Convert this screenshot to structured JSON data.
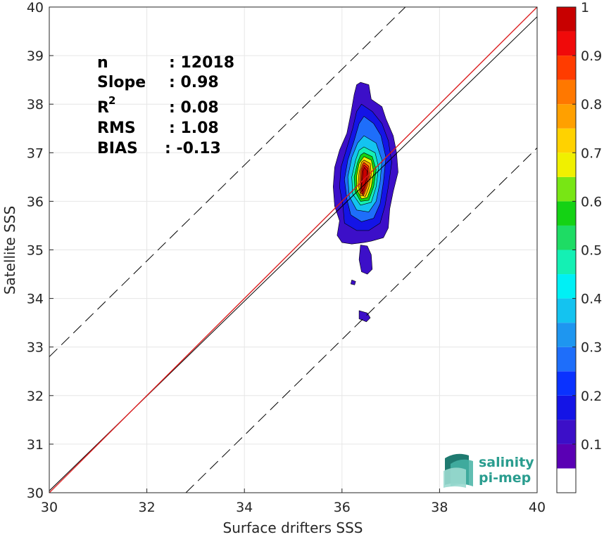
{
  "chart_data": {
    "type": "heatmap",
    "title": "",
    "xlabel": "Surface drifters SSS",
    "ylabel": "Satellite SSS",
    "xlim": [
      30,
      40
    ],
    "ylim": [
      30,
      40
    ],
    "xticks": [
      "30",
      "32",
      "34",
      "36",
      "38",
      "40"
    ],
    "yticks": [
      "30",
      "31",
      "32",
      "33",
      "34",
      "35",
      "36",
      "37",
      "38",
      "39",
      "40"
    ],
    "grid": true,
    "stats": [
      {
        "label": "n",
        "value": ": 12018"
      },
      {
        "label": "Slope",
        "value": ": 0.98"
      },
      {
        "label": "R",
        "sup": "2",
        "value": ": 0.08"
      },
      {
        "label": "RMS",
        "value": ": 1.08"
      },
      {
        "label": "BIAS",
        "value": ": -0.13"
      }
    ],
    "lines": [
      {
        "kind": "one-to-one",
        "color": "#000000",
        "style": "solid",
        "points": [
          [
            30,
            30
          ],
          [
            40,
            40
          ]
        ]
      },
      {
        "kind": "upper-offset",
        "color": "#000000",
        "style": "dashed",
        "points": [
          [
            30,
            32.8
          ],
          [
            37.3,
            40
          ]
        ]
      },
      {
        "kind": "lower-offset",
        "color": "#000000",
        "style": "dashed",
        "points": [
          [
            32.8,
            30
          ],
          [
            40,
            37.1
          ]
        ]
      },
      {
        "kind": "regression",
        "color": "#000000",
        "style": "solid",
        "points": [
          [
            30,
            30.04
          ],
          [
            40,
            39.8
          ]
        ]
      },
      {
        "kind": "fit",
        "color": "#e41a1c",
        "style": "solid",
        "points": [
          [
            30,
            30
          ],
          [
            40,
            40
          ]
        ]
      }
    ],
    "colorbar": {
      "levels": [
        "0",
        "0.05",
        "0.1",
        "0.15",
        "0.2",
        "0.25",
        "0.3",
        "0.35",
        "0.4",
        "0.45",
        "0.5",
        "0.55",
        "0.6",
        "0.65",
        "0.7",
        "0.75",
        "0.8",
        "0.85",
        "0.9",
        "0.95",
        "1"
      ],
      "colors": [
        "#ffffff",
        "#5a00b4",
        "#3c0fc8",
        "#1414e6",
        "#0a32ff",
        "#1e6efa",
        "#1e96f0",
        "#14c3f0",
        "#00f0f5",
        "#14f0b4",
        "#1edc64",
        "#14d214",
        "#78e614",
        "#f0f000",
        "#ffd200",
        "#ffa000",
        "#ff7800",
        "#ff3c00",
        "#f00a0a",
        "#c80000",
        "#7d0000"
      ],
      "ticks": [
        "0.1",
        "0.2",
        "0.3",
        "0.4",
        "0.5",
        "0.6",
        "0.7",
        "0.8",
        "0.9",
        "1"
      ]
    },
    "density_contours": [
      {
        "level": "0.05",
        "points": [
          [
            36.38,
            38.45
          ],
          [
            36.55,
            38.4
          ],
          [
            36.6,
            38.1
          ],
          [
            36.82,
            37.95
          ],
          [
            36.9,
            37.7
          ],
          [
            37.05,
            37.35
          ],
          [
            37.12,
            37.0
          ],
          [
            37.15,
            36.6
          ],
          [
            37.05,
            36.2
          ],
          [
            36.98,
            35.85
          ],
          [
            36.95,
            35.45
          ],
          [
            36.85,
            35.25
          ],
          [
            36.6,
            35.18
          ],
          [
            36.45,
            35.15
          ],
          [
            36.2,
            35.12
          ],
          [
            36.0,
            35.15
          ],
          [
            35.9,
            35.3
          ],
          [
            35.95,
            35.6
          ],
          [
            35.85,
            35.9
          ],
          [
            35.82,
            36.3
          ],
          [
            35.85,
            36.7
          ],
          [
            35.95,
            37.05
          ],
          [
            36.1,
            37.4
          ],
          [
            36.18,
            37.8
          ],
          [
            36.25,
            38.2
          ],
          [
            36.3,
            38.4
          ]
        ]
      },
      {
        "level": "0.05",
        "points": [
          [
            36.38,
            35.1
          ],
          [
            36.52,
            35.08
          ],
          [
            36.6,
            34.9
          ],
          [
            36.62,
            34.6
          ],
          [
            36.52,
            34.5
          ],
          [
            36.4,
            34.55
          ],
          [
            36.35,
            34.8
          ]
        ]
      },
      {
        "level": "0.05",
        "points": [
          [
            36.2,
            34.38
          ],
          [
            36.28,
            34.35
          ],
          [
            36.26,
            34.28
          ],
          [
            36.18,
            34.3
          ]
        ]
      },
      {
        "level": "0.05",
        "points": [
          [
            36.35,
            33.75
          ],
          [
            36.52,
            33.7
          ],
          [
            36.58,
            33.6
          ],
          [
            36.5,
            33.52
          ],
          [
            36.35,
            33.58
          ]
        ]
      },
      {
        "level": "0.1",
        "points": [
          [
            36.4,
            38.0
          ],
          [
            36.62,
            37.85
          ],
          [
            36.82,
            37.6
          ],
          [
            36.95,
            37.25
          ],
          [
            37.02,
            36.8
          ],
          [
            36.95,
            36.3
          ],
          [
            36.88,
            35.9
          ],
          [
            36.78,
            35.55
          ],
          [
            36.55,
            35.4
          ],
          [
            36.3,
            35.4
          ],
          [
            36.05,
            35.55
          ],
          [
            36.02,
            35.9
          ],
          [
            35.95,
            36.3
          ],
          [
            35.98,
            36.7
          ],
          [
            36.1,
            37.1
          ],
          [
            36.22,
            37.5
          ],
          [
            36.3,
            37.85
          ]
        ]
      },
      {
        "level": "0.2",
        "points": [
          [
            36.45,
            37.75
          ],
          [
            36.65,
            37.6
          ],
          [
            36.8,
            37.35
          ],
          [
            36.9,
            36.9
          ],
          [
            36.85,
            36.4
          ],
          [
            36.78,
            35.95
          ],
          [
            36.65,
            35.65
          ],
          [
            36.4,
            35.58
          ],
          [
            36.18,
            35.72
          ],
          [
            36.1,
            36.05
          ],
          [
            36.05,
            36.45
          ],
          [
            36.12,
            36.85
          ],
          [
            36.25,
            37.25
          ],
          [
            36.35,
            37.6
          ]
        ]
      },
      {
        "level": "0.3",
        "points": [
          [
            36.45,
            37.35
          ],
          [
            36.7,
            37.2
          ],
          [
            36.82,
            36.85
          ],
          [
            36.78,
            36.4
          ],
          [
            36.7,
            36.0
          ],
          [
            36.55,
            35.78
          ],
          [
            36.3,
            35.82
          ],
          [
            36.15,
            36.1
          ],
          [
            36.12,
            36.5
          ],
          [
            36.2,
            36.9
          ],
          [
            36.32,
            37.2
          ]
        ]
      },
      {
        "level": "0.4",
        "points": [
          [
            36.45,
            37.12
          ],
          [
            36.68,
            37.0
          ],
          [
            36.75,
            36.7
          ],
          [
            36.7,
            36.3
          ],
          [
            36.6,
            35.98
          ],
          [
            36.38,
            35.92
          ],
          [
            36.22,
            36.15
          ],
          [
            36.2,
            36.5
          ],
          [
            36.28,
            36.85
          ],
          [
            36.35,
            37.05
          ]
        ]
      },
      {
        "level": "0.5",
        "points": [
          [
            36.45,
            37.0
          ],
          [
            36.62,
            36.92
          ],
          [
            36.7,
            36.65
          ],
          [
            36.65,
            36.3
          ],
          [
            36.55,
            36.02
          ],
          [
            36.38,
            36.0
          ],
          [
            36.27,
            36.2
          ],
          [
            36.25,
            36.5
          ],
          [
            36.32,
            36.8
          ],
          [
            36.38,
            36.95
          ]
        ]
      },
      {
        "level": "0.6",
        "points": [
          [
            36.45,
            36.92
          ],
          [
            36.6,
            36.85
          ],
          [
            36.65,
            36.6
          ],
          [
            36.6,
            36.3
          ],
          [
            36.52,
            36.08
          ],
          [
            36.4,
            36.05
          ],
          [
            36.3,
            36.25
          ],
          [
            36.3,
            36.52
          ],
          [
            36.35,
            36.78
          ]
        ]
      },
      {
        "level": "0.7",
        "points": [
          [
            36.45,
            36.85
          ],
          [
            36.58,
            36.78
          ],
          [
            36.6,
            36.55
          ],
          [
            36.55,
            36.28
          ],
          [
            36.48,
            36.1
          ],
          [
            36.38,
            36.12
          ],
          [
            36.33,
            36.35
          ],
          [
            36.35,
            36.6
          ],
          [
            36.4,
            36.8
          ]
        ]
      },
      {
        "level": "0.8",
        "points": [
          [
            36.45,
            36.8
          ],
          [
            36.55,
            36.72
          ],
          [
            36.57,
            36.5
          ],
          [
            36.5,
            36.27
          ],
          [
            36.44,
            36.12
          ],
          [
            36.38,
            36.18
          ],
          [
            36.37,
            36.4
          ],
          [
            36.38,
            36.62
          ],
          [
            36.42,
            36.76
          ]
        ]
      },
      {
        "level": "0.85",
        "points": [
          [
            36.45,
            36.75
          ],
          [
            36.53,
            36.68
          ],
          [
            36.54,
            36.5
          ],
          [
            36.48,
            36.3
          ],
          [
            36.43,
            36.15
          ],
          [
            36.39,
            36.22
          ],
          [
            36.4,
            36.45
          ],
          [
            36.41,
            36.65
          ]
        ]
      },
      {
        "level": "0.9",
        "points": [
          [
            36.46,
            36.7
          ],
          [
            36.52,
            36.62
          ],
          [
            36.5,
            36.45
          ],
          [
            36.45,
            36.28
          ],
          [
            36.42,
            36.2
          ],
          [
            36.4,
            36.3
          ],
          [
            36.42,
            36.5
          ],
          [
            36.43,
            36.62
          ]
        ]
      }
    ]
  },
  "logo": {
    "line1": "salinity",
    "line2": "pi-mep",
    "color": "#2a9d8f"
  }
}
